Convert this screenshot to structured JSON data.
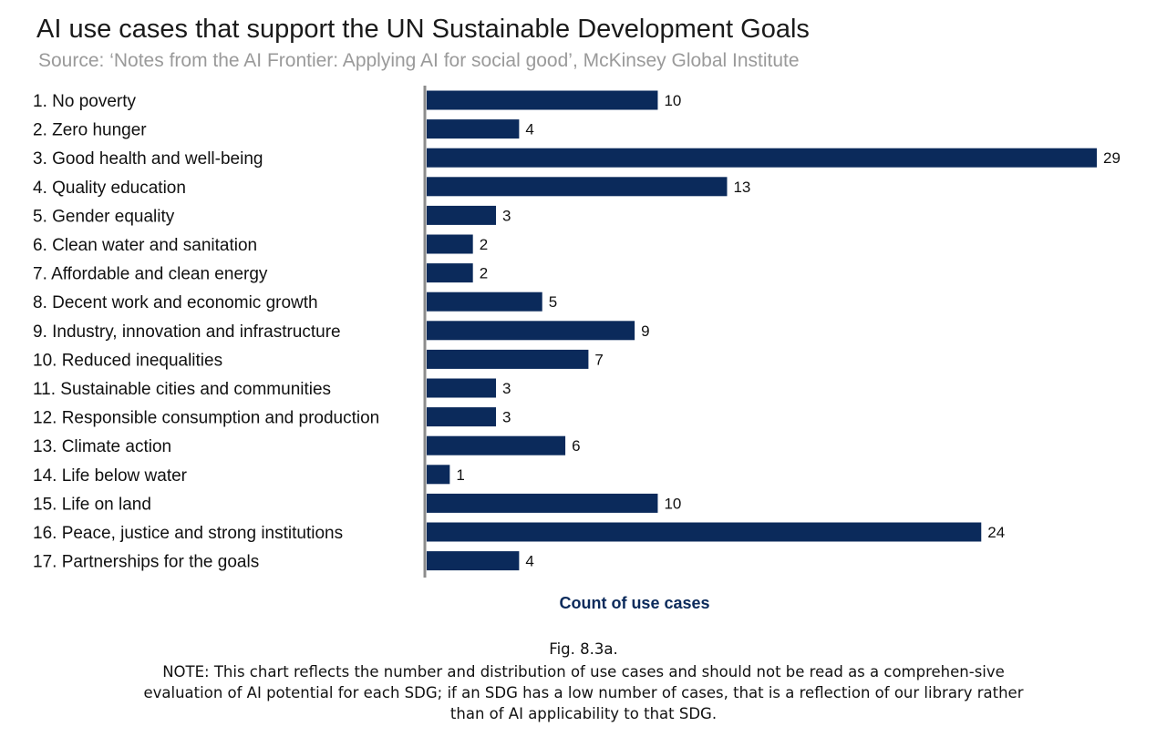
{
  "header": {
    "title": "AI use cases that support the UN Sustainable Development Goals",
    "subtitle": "Source: ‘Notes from the AI Frontier: Applying AI for social good’, McKinsey Global Institute"
  },
  "chart_data": {
    "type": "bar",
    "orientation": "horizontal",
    "title": "AI use cases that support the UN Sustainable Development Goals",
    "subtitle": "Source: ‘Notes from the AI Frontier: Applying AI for social good’, McKinsey Global Institute",
    "xlabel": "Count of use cases",
    "ylabel": "",
    "xlim": [
      0,
      29
    ],
    "grid": false,
    "bar_color": "#0b2a5b",
    "categories": [
      "1. No poverty",
      "2. Zero hunger",
      "3. Good health and well-being",
      "4. Quality education",
      "5. Gender equality",
      "6. Clean water and sanitation",
      "7. Affordable and clean energy",
      "8. Decent work and economic growth",
      "9. Industry, innovation and infrastructure",
      "10. Reduced inequalities",
      "11. Sustainable cities and communities",
      "12. Responsible consumption and production",
      "13. Climate action",
      "14. Life below water",
      "15. Life on land",
      "16. Peace, justice and strong institutions",
      "17. Partnerships for the goals"
    ],
    "values": [
      10,
      4,
      29,
      13,
      3,
      2,
      2,
      5,
      9,
      7,
      3,
      3,
      6,
      1,
      10,
      24,
      4
    ]
  },
  "caption": {
    "figure_label": "Fig. 8.3a.",
    "note": "NOTE: This chart reflects the number and distribution of use cases and should not be read as a comprehen-sive evaluation of AI potential for each SDG; if an SDG has a low number of cases, that is a reflection of our library rather than of AI applicability to that SDG."
  }
}
